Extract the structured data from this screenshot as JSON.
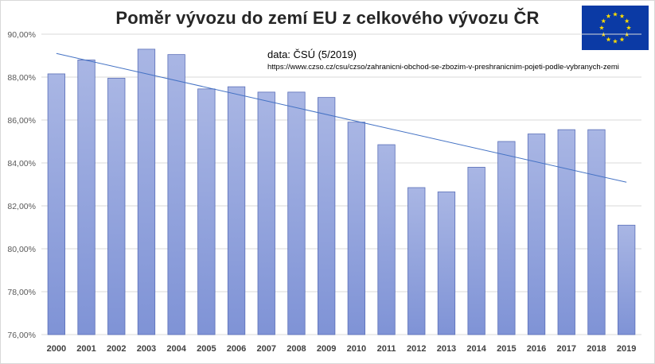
{
  "chart_data": {
    "type": "bar",
    "title": "Poměr vývozu do zemí EU z celkového vývozu ČR",
    "source_label": "data: ČSÚ (5/2019)",
    "source_url": "https://www.czso.cz/csu/czso/zahranicni-obchod-se-zbozim-v-preshranicnim-pojeti-podle-vybranych-zemi",
    "categories": [
      "2000",
      "2001",
      "2002",
      "2003",
      "2004",
      "2005",
      "2006",
      "2007",
      "2008",
      "2009",
      "2010",
      "2011",
      "2012",
      "2013",
      "2014",
      "2015",
      "2016",
      "2017",
      "2018",
      "2019"
    ],
    "values": [
      88.15,
      88.8,
      87.95,
      89.3,
      89.05,
      87.45,
      87.55,
      87.3,
      87.3,
      87.05,
      85.9,
      84.85,
      82.85,
      82.65,
      83.8,
      85.0,
      85.35,
      85.55,
      85.55,
      81.1
    ],
    "ylim": [
      76,
      90
    ],
    "yticks": [
      "76,00%",
      "78,00%",
      "80,00%",
      "82,00%",
      "84,00%",
      "86,00%",
      "88,00%",
      "90,00%"
    ],
    "trendline": {
      "type": "linear",
      "start": 89.1,
      "end": 83.1
    },
    "grid": true,
    "legend": "none",
    "bar_color_top": "#a9b6e4",
    "bar_color_bottom": "#7f93d6",
    "bar_border": "#5a6fb8",
    "trend_color": "#4472c4",
    "flag_icon": "eu-flag-icon"
  }
}
